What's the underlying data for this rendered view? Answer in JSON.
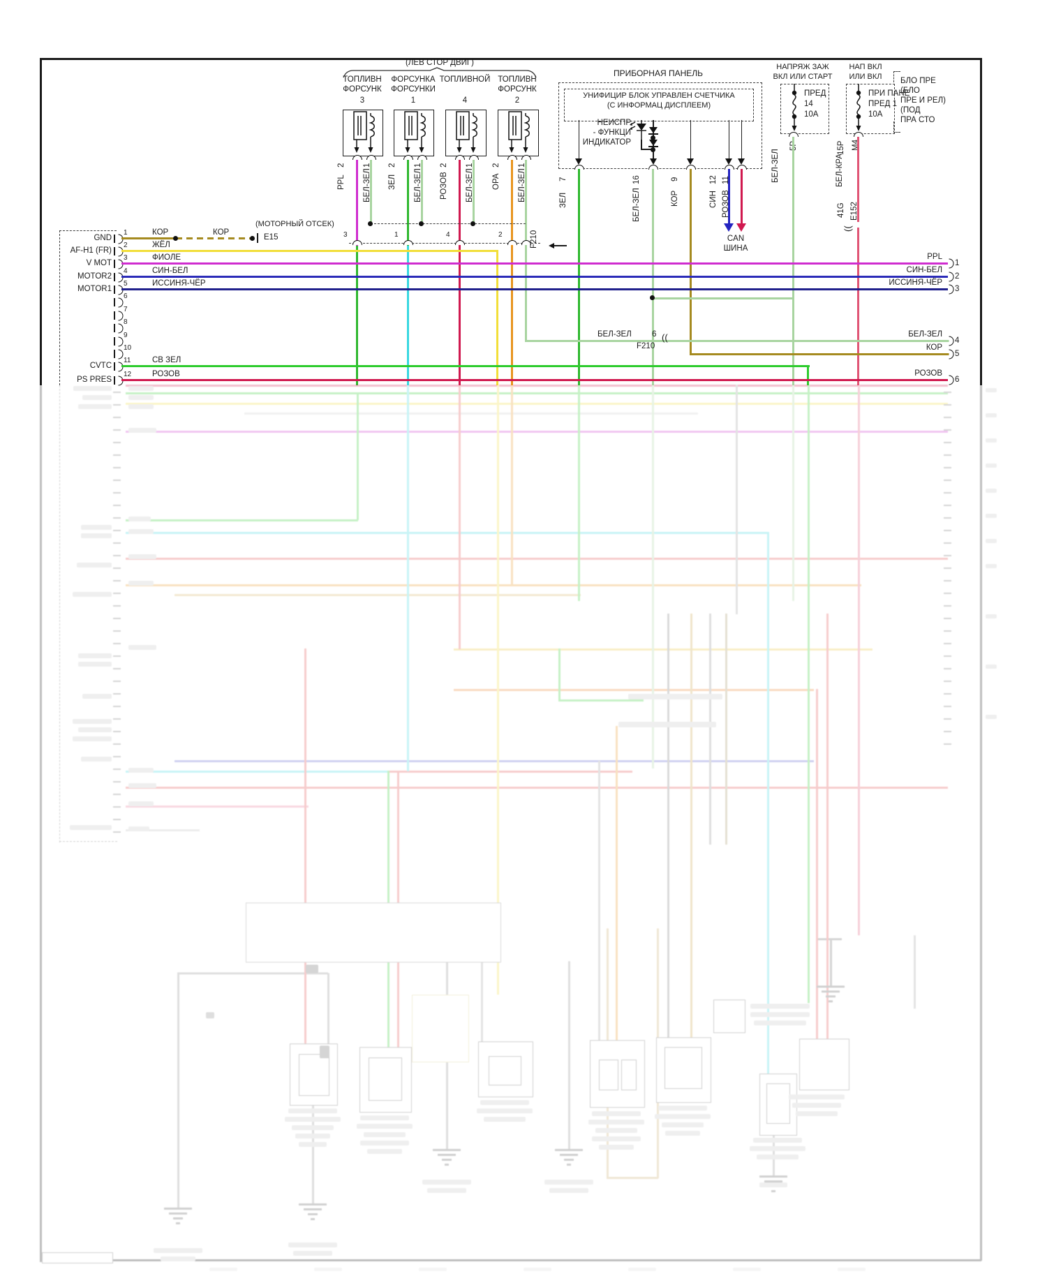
{
  "top": {
    "bracket": "(ЛЕВ СТОР ДВИГ)",
    "f210": "F210",
    "inj": [
      {
        "l1": "ТОПЛИВН",
        "l2": "ФОРСУНК",
        "n": "3",
        "p2": "2",
        "p1": "1",
        "w2": "PPL",
        "w1": "БЕЛ-ЗЕЛ",
        "f": "3"
      },
      {
        "l1": "ФОРСУНКА",
        "l2": "ФОРСУНКИ",
        "n": "1",
        "p2": "2",
        "p1": "1",
        "w2": "ЗЕЛ",
        "w1": "БЕЛ-ЗЕЛ",
        "f": "1"
      },
      {
        "l1": "ТОПЛИВНОЙ",
        "l2": "",
        "n": "4",
        "p2": "2",
        "p1": "1",
        "w2": "РОЗОВ",
        "w1": "БЕЛ-ЗЕЛ",
        "f": "4"
      },
      {
        "l1": "ТОПЛИВН",
        "l2": "ФОРСУНК",
        "n": "2",
        "p2": "2",
        "p1": "1",
        "w2": "ОРА",
        "w1": "БЕЛ-ЗЕЛ",
        "f": "2"
      }
    ]
  },
  "panel": {
    "title": "ПРИБОРНАЯ ПАНЕЛЬ",
    "block1": "УНИФИЦИР БЛОК УПРАВЛЕН СЧЕТЧИКА",
    "block2": "(С ИНФОРМАЦ ДИСПЛЕЕМ)",
    "mil1": "НЕИСПР",
    "mil2": "- ФУНКЦИ",
    "mil3": "ИНДИКАТОР",
    "out": [
      {
        "n": "7",
        "w": "ЗЕЛ"
      },
      {
        "n": "16",
        "w": "БЕЛ-ЗЕЛ"
      },
      {
        "n": "9",
        "w": "КОР"
      },
      {
        "n": "12",
        "w": "СИН"
      },
      {
        "n": "11",
        "w": "РОЗОВ"
      }
    ],
    "can1": "CAN",
    "can2": "ШИНА"
  },
  "power": {
    "src1a": "НАПРЯЖ ЗАЖ",
    "src1b": "ВКЛ ИЛИ СТАРТ",
    "src2a": "НАП ВКЛ",
    "src2b": "ИЛИ ВКЛ",
    "f1a": "ПРЕД",
    "f1b": "14",
    "f1c": "10А",
    "f2a": "ПРИ ПАНЕ",
    "f2b": "ПРЕД 1",
    "f2c": "10А",
    "n1a": "БЛО ПРЕ",
    "n1b": "(БЛО",
    "n1c": "ПРЕ И РЕЛ)",
    "n1d": "(ПОД",
    "n1e": "ПРА СТО",
    "p1": "5P",
    "w1": "БЕЛ-ЗЕЛ",
    "p2": "15P",
    "c2": "М4",
    "w2": "БЕЛ-КРА",
    "r1": "41G",
    "r2": "E152",
    "brk": "(("
  },
  "ecm": {
    "bay": "(МОТОРНЫЙ ОТСЕК)",
    "bayconn": "E15",
    "kor2": "КОР",
    "pins": [
      {
        "n": "1",
        "name": "GND",
        "w": "КОР"
      },
      {
        "n": "2",
        "name": "AF-H1 (FR)",
        "w": "ЖЁЛ"
      },
      {
        "n": "3",
        "name": "V MOT",
        "w": "ФИОЛЕ"
      },
      {
        "n": "4",
        "name": "MOTOR2",
        "w": "СИН-БЕЛ"
      },
      {
        "n": "5",
        "name": "MOTOR1",
        "w": "ИССИНЯ-ЧЁР"
      },
      {
        "n": "6",
        "name": "",
        "w": ""
      },
      {
        "n": "7",
        "name": "",
        "w": ""
      },
      {
        "n": "8",
        "name": "",
        "w": ""
      },
      {
        "n": "9",
        "name": "",
        "w": ""
      },
      {
        "n": "10",
        "name": "",
        "w": ""
      },
      {
        "n": "11",
        "name": "CVTC",
        "w": "СВ ЗЕЛ"
      },
      {
        "n": "12",
        "name": "PS PRES",
        "w": "РОЗОВ"
      }
    ]
  },
  "right": [
    {
      "w": "PPL",
      "n": "1"
    },
    {
      "w": "СИН-БЕЛ",
      "n": "2"
    },
    {
      "w": "ИССИНЯ-ЧЁР",
      "n": "3"
    },
    {
      "w": "БЕЛ-ЗЕЛ",
      "n": "4"
    },
    {
      "w": "КОР",
      "n": "5"
    },
    {
      "w": "РОЗОВ",
      "n": "6"
    }
  ],
  "mid": {
    "w": "БЕЛ-ЗЕЛ",
    "n": "6",
    "brk": "((",
    "f": "F210"
  },
  "colors": {
    "kor": "#a58a1f",
    "zhel": "#f2de38",
    "fiole": "#cf2ccf",
    "sinbel": "#2b2bb8",
    "issin": "#20208c",
    "svzel": "#2ecc2e",
    "rozov": "#d0194f",
    "zel": "#2eb82e",
    "belzel": "#a8d4a0",
    "ora": "#e8941e",
    "sin": "#2424c0",
    "belkra": "#e05575",
    "cyan": "#38d8e0"
  }
}
